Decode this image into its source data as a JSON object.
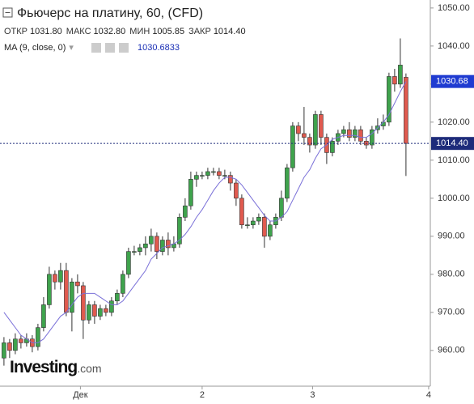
{
  "chart_data": {
    "type": "candlestick",
    "title": "Фьючерс на платину, 60, (CFD)",
    "ohlc": [
      {
        "label": "ОТКР",
        "value": "1031.80"
      },
      {
        "label": "МАКС",
        "value": "1032.80"
      },
      {
        "label": "МИН",
        "value": "1005.85"
      },
      {
        "label": "ЗАКР",
        "value": "1014.40"
      }
    ],
    "x": [
      0,
      1,
      2,
      3,
      4,
      5,
      6,
      7,
      8,
      9,
      10,
      11,
      12,
      13,
      14,
      15,
      16,
      17,
      18,
      19,
      20,
      21,
      22,
      23,
      24,
      25,
      26,
      27,
      28,
      29,
      30,
      31,
      32,
      33,
      34,
      35,
      36,
      37,
      38,
      39,
      40,
      41,
      42,
      43,
      44,
      45,
      46,
      47,
      48,
      49,
      50,
      51,
      52,
      53,
      54,
      55,
      56,
      57,
      58,
      59,
      60,
      61,
      62,
      63,
      64,
      65,
      66,
      67,
      68,
      69,
      70,
      71
    ],
    "open": [
      958,
      962,
      960,
      963,
      962,
      963,
      961,
      966,
      972,
      980,
      978,
      981,
      970,
      978,
      977,
      968,
      972,
      969,
      971,
      970,
      973,
      975,
      980,
      986,
      986,
      987,
      988,
      990,
      986,
      989,
      987,
      988,
      995,
      998,
      1005,
      1006,
      1006,
      1007,
      1007,
      1006,
      1006,
      1004,
      1000,
      993,
      993,
      994,
      995,
      990,
      993,
      995,
      1000,
      1008,
      1019,
      1017,
      1016,
      1014,
      1022,
      1016,
      1012,
      1015,
      1017,
      1018,
      1016,
      1018,
      1015,
      1014,
      1018,
      1019,
      1020,
      1032,
      1030,
      1031.8
    ],
    "high": [
      963.5,
      963,
      964.5,
      964,
      964.5,
      964,
      967,
      974,
      982,
      981,
      983,
      983,
      979,
      980,
      978,
      973,
      973,
      972,
      972,
      974,
      976,
      981,
      987,
      987.5,
      988,
      990,
      992,
      991,
      990,
      991,
      990,
      996,
      1000,
      1007,
      1007,
      1007,
      1008,
      1008,
      1008,
      1007.5,
      1007,
      1005,
      1001,
      995,
      995,
      996,
      996,
      994,
      996,
      1002,
      1009,
      1020,
      1020,
      1024,
      1017,
      1023,
      1023,
      1017,
      1016,
      1018,
      1019,
      1020,
      1019,
      1019,
      1016,
      1019,
      1021,
      1022,
      1033,
      1034,
      1042,
      1032.8
    ],
    "low": [
      956,
      958,
      959,
      960.5,
      961,
      959.5,
      960,
      965,
      971,
      976,
      976,
      969,
      965,
      975,
      963,
      967,
      967,
      968,
      969,
      969,
      972,
      974,
      979,
      985,
      985,
      985,
      986,
      984,
      985,
      985,
      986,
      987,
      994,
      997,
      1003,
      1005,
      1005,
      1006,
      1005,
      1005,
      1002,
      998,
      992,
      992,
      992,
      993,
      987,
      989,
      992,
      994,
      999,
      1007,
      1015,
      1014,
      1012,
      1013,
      1014,
      1009,
      1011,
      1014,
      1016,
      1015,
      1015,
      1014,
      1013,
      1013,
      1017,
      1018,
      1019,
      1028,
      1029,
      1005.85
    ],
    "close": [
      962,
      960,
      963,
      962,
      963,
      961,
      966,
      972,
      980,
      978,
      981,
      970,
      978,
      977,
      968,
      972,
      969,
      971,
      970,
      973,
      975,
      980,
      986,
      986,
      987,
      988,
      990,
      986,
      989,
      987,
      988,
      995,
      998,
      1005,
      1006,
      1006,
      1007,
      1007,
      1006,
      1006,
      1004,
      1000,
      993,
      993,
      994,
      995,
      990,
      993,
      995,
      1000,
      1008,
      1019,
      1017,
      1016,
      1014,
      1022,
      1016,
      1012,
      1015,
      1017,
      1018,
      1016,
      1018,
      1015,
      1014,
      1018,
      1019,
      1020,
      1032,
      1030,
      1035,
      1014.4
    ],
    "up_color": "#3fa34d",
    "down_color": "#e05a4f",
    "ma": {
      "name": "MA (9, close, 0)",
      "color": "#7a70d8",
      "values": [
        970,
        968,
        966,
        964,
        963,
        962,
        962,
        963,
        965,
        967,
        969,
        970,
        972,
        974,
        975,
        975,
        975,
        974,
        973,
        972,
        972,
        973,
        975,
        977,
        979,
        981,
        984,
        985.5,
        987,
        987.5,
        988,
        989,
        990.5,
        992.5,
        995,
        997,
        999.5,
        1002,
        1004,
        1005.5,
        1005.5,
        1005,
        1003.5,
        1001.5,
        999.5,
        997.5,
        995.5,
        994,
        994,
        995,
        996.5,
        999.5,
        1002.5,
        1005.5,
        1007.5,
        1010.5,
        1013,
        1014,
        1015.5,
        1016,
        1016.5,
        1016.5,
        1016.5,
        1016,
        1016,
        1017,
        1018.5,
        1020,
        1022,
        1025,
        1028,
        1030.6833
      ],
      "last": {
        "value": 1030.6833,
        "label": "1030.68"
      }
    },
    "last_price": {
      "value": 1014.4,
      "label": "1014.40"
    },
    "xlim": [
      -0.7,
      75.3
    ],
    "xticks": [
      {
        "value": 13.5,
        "label": "Дек"
      },
      {
        "value": 35,
        "label": "2"
      },
      {
        "value": 54.5,
        "label": "3"
      },
      {
        "value": 75,
        "label": "4"
      }
    ],
    "ylim": [
      950.6,
      1052.1
    ],
    "yticks": [
      {
        "value": 960,
        "label": "960.00"
      },
      {
        "value": 970,
        "label": "970.00"
      },
      {
        "value": 980,
        "label": "980.00"
      },
      {
        "value": 990,
        "label": "990.00"
      },
      {
        "value": 1000,
        "label": "1000.00"
      },
      {
        "value": 1010,
        "label": "1010.00"
      },
      {
        "value": 1020,
        "label": "1020.00"
      },
      {
        "value": 1030,
        "label": "1030.00"
      },
      {
        "value": 1040,
        "label": "1040.00"
      },
      {
        "value": 1050,
        "label": "1050.00"
      }
    ],
    "watermark": {
      "brand": "Investing",
      "suffix": ".com"
    }
  }
}
